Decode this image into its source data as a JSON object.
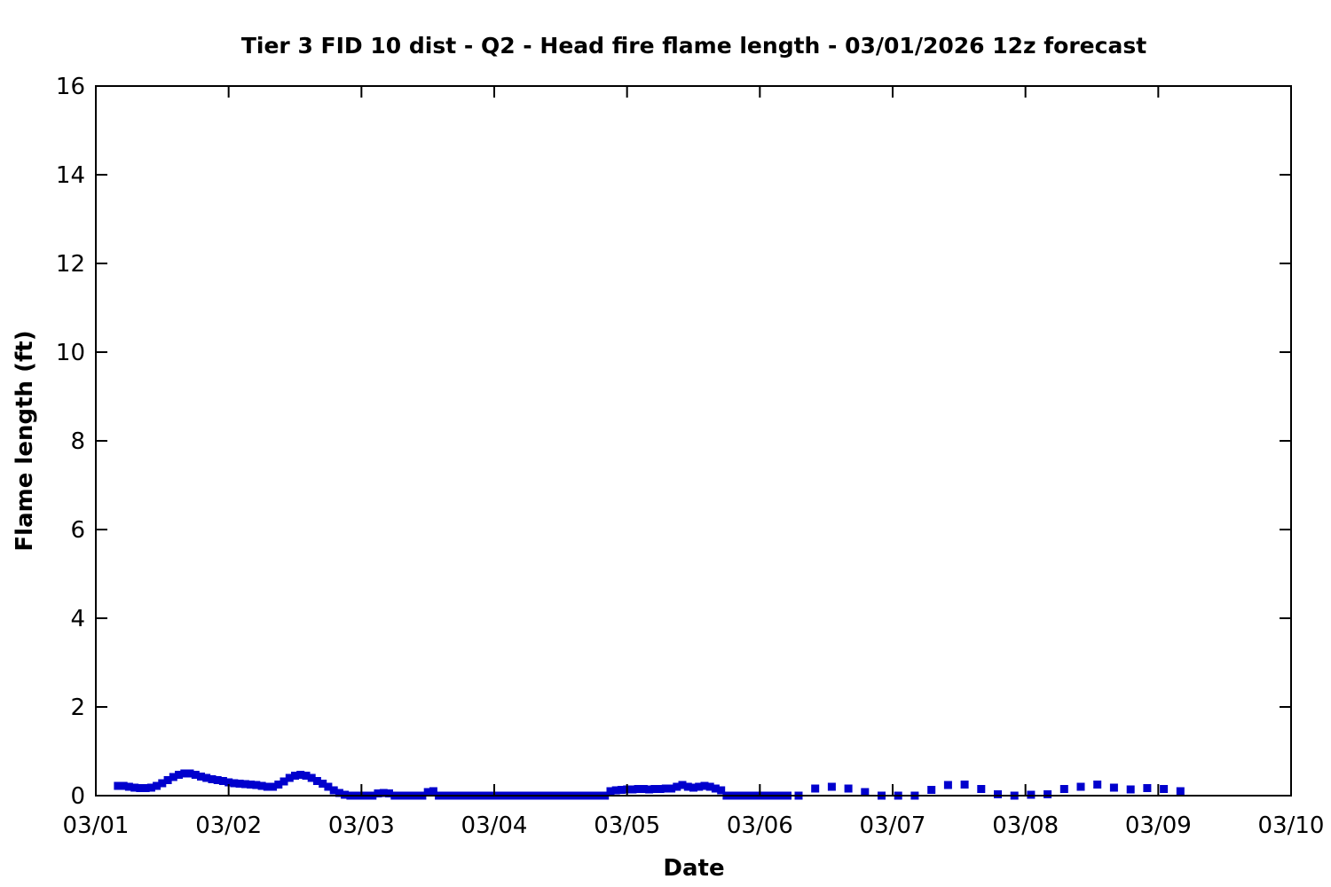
{
  "chart_data": {
    "type": "scatter",
    "marker": "square",
    "marker_color": "#0000CD",
    "frame_color": "#000000",
    "background_color": "#ffffff",
    "grid": false,
    "legend": "none",
    "title": "Tier 3 FID 10 dist - Q2 - Head fire flame length - 03/01/2026 12z forecast",
    "xlabel": "Date",
    "ylabel": "Flame length (ft)",
    "x_tick_labels": [
      "03/01",
      "03/02",
      "03/03",
      "03/04",
      "03/05",
      "03/06",
      "03/07",
      "03/08",
      "03/09",
      "03/10"
    ],
    "y_ticks": [
      0,
      2,
      4,
      6,
      8,
      10,
      12,
      14,
      16
    ],
    "ylim": [
      0,
      16
    ],
    "x_axis_unit": "hours since 03/01 00:00",
    "xlim_hours": [
      0,
      216
    ],
    "series": [
      {
        "name": "Head fire flame length (ft)",
        "x_hours": [
          4,
          5,
          6,
          7,
          8,
          9,
          10,
          11,
          12,
          13,
          14,
          15,
          16,
          17,
          18,
          19,
          20,
          21,
          22,
          23,
          24,
          25,
          26,
          27,
          28,
          29,
          30,
          31,
          32,
          33,
          34,
          35,
          36,
          37,
          38,
          39,
          40,
          41,
          42,
          43,
          44,
          45,
          46,
          47,
          48,
          49,
          50,
          51,
          52,
          53,
          54,
          55,
          56,
          57,
          58,
          59,
          60,
          61,
          62,
          63,
          64,
          65,
          66,
          67,
          68,
          69,
          70,
          71,
          72,
          73,
          74,
          75,
          76,
          77,
          78,
          79,
          80,
          81,
          82,
          83,
          84,
          85,
          86,
          87,
          88,
          89,
          90,
          91,
          92,
          93,
          94,
          95,
          96,
          97,
          98,
          99,
          100,
          101,
          102,
          103,
          104,
          105,
          106,
          107,
          108,
          109,
          110,
          111,
          112,
          113,
          114,
          115,
          116,
          117,
          118,
          119,
          120,
          121,
          122,
          123,
          124,
          125,
          127,
          130,
          133,
          136,
          139,
          142,
          145,
          148,
          151,
          154,
          157,
          160,
          163,
          166,
          169,
          172,
          175,
          178,
          181,
          184,
          187,
          190,
          193,
          196
        ],
        "values": [
          0.22,
          0.22,
          0.2,
          0.18,
          0.17,
          0.17,
          0.18,
          0.22,
          0.28,
          0.35,
          0.42,
          0.47,
          0.5,
          0.5,
          0.47,
          0.43,
          0.4,
          0.37,
          0.35,
          0.33,
          0.3,
          0.28,
          0.27,
          0.26,
          0.25,
          0.24,
          0.22,
          0.2,
          0.2,
          0.25,
          0.32,
          0.4,
          0.45,
          0.47,
          0.45,
          0.4,
          0.33,
          0.27,
          0.2,
          0.12,
          0.06,
          0.02,
          0,
          0,
          0,
          0,
          0,
          0.05,
          0.06,
          0.05,
          0,
          0,
          0,
          0,
          0,
          0,
          0.08,
          0.1,
          0,
          0,
          0,
          0,
          0,
          0,
          0,
          0,
          0,
          0,
          0,
          0,
          0,
          0,
          0,
          0,
          0,
          0,
          0,
          0,
          0,
          0,
          0,
          0,
          0,
          0,
          0,
          0,
          0,
          0,
          0,
          0.1,
          0.12,
          0.13,
          0.14,
          0.14,
          0.15,
          0.15,
          0.14,
          0.15,
          0.15,
          0.16,
          0.16,
          0.2,
          0.24,
          0.2,
          0.18,
          0.2,
          0.22,
          0.2,
          0.16,
          0.12,
          0,
          0,
          0,
          0,
          0,
          0,
          0,
          0,
          0,
          0,
          0,
          0,
          0,
          0.16,
          0.2,
          0.16,
          0.08,
          0,
          0,
          0,
          0.13,
          0.24,
          0.25,
          0.15,
          0.03,
          0,
          0.02,
          0.03,
          0.15,
          0.2,
          0.25,
          0.18,
          0.14,
          0.17,
          0.15,
          0.1
        ]
      }
    ]
  }
}
